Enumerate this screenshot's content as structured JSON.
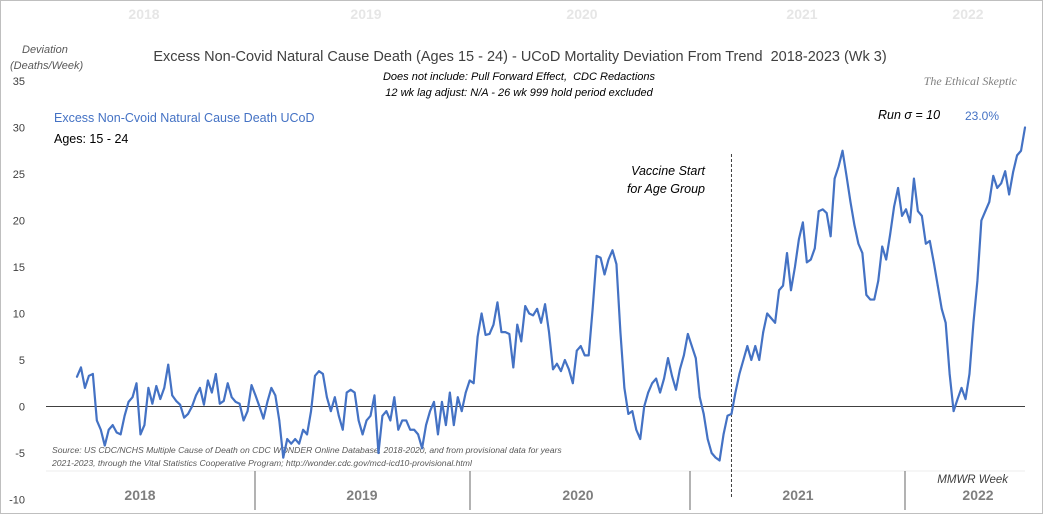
{
  "chart_data": {
    "type": "line",
    "title": "Excess Non-Covid Natural Cause Death (Ages 15 - 24) - UCoD Mortality Deviation From Trend  2018-2023 (Wk 3)",
    "subtitle_lines": [
      "Does not include: Pull Forward Effect,  CDC Redactions",
      "12 wk lag adjust: N/A - 26 wk 999 hold period excluded"
    ],
    "ylabel_lines": [
      "Deviation",
      "(Deaths/Week)"
    ],
    "xlabel": "MMWR Week",
    "ylim": [
      -10,
      35
    ],
    "yticks": [
      35,
      30,
      25,
      20,
      15,
      10,
      5,
      0,
      -5,
      -10
    ],
    "year_labels": [
      "2018",
      "2019",
      "2020",
      "2021",
      "2022"
    ],
    "series": [
      {
        "name": "Excess Non-Cvoid Natural Cause Death UCoD",
        "color": "#4472c4",
        "values": [
          3.2,
          4.2,
          2.0,
          3.3,
          3.5,
          -1.5,
          -2.5,
          -4.2,
          -2.5,
          -2.0,
          -2.8,
          -3.0,
          -1.0,
          0.5,
          1.0,
          2.5,
          -3.0,
          -2.0,
          2.0,
          0.3,
          2.2,
          0.8,
          2.0,
          4.5,
          1.2,
          0.6,
          0.2,
          -1.2,
          -0.8,
          0.0,
          1.2,
          2.0,
          0.2,
          2.8,
          1.5,
          3.5,
          0.3,
          0.6,
          2.5,
          1.0,
          0.5,
          0.3,
          -1.5,
          -0.5,
          2.3,
          1.2,
          0.0,
          -1.3,
          0.5,
          2.0,
          1.2,
          -1.5,
          -5.5,
          -3.5,
          -4.0,
          -3.5,
          -4.0,
          -2.5,
          -3.0,
          -0.5,
          3.3,
          3.8,
          3.5,
          1.0,
          -0.5,
          1.0,
          -1.0,
          -2.5,
          1.5,
          1.8,
          1.5,
          -1.5,
          -3.0,
          -1.5,
          -1.0,
          1.2,
          -5.0,
          -1.0,
          -0.5,
          -1.5,
          1.0,
          -2.5,
          -1.5,
          -1.5,
          -2.5,
          -2.5,
          -3.0,
          -4.5,
          -2.0,
          -0.5,
          0.5,
          -3.0,
          0.5,
          -2.0,
          1.5,
          -2.0,
          1.0,
          -0.5,
          1.5,
          2.8,
          2.5,
          7.5,
          10.0,
          7.7,
          7.8,
          8.8,
          11.2,
          8.0,
          8.0,
          7.8,
          4.2,
          8.8,
          7.0,
          10.8,
          10.0,
          9.8,
          10.5,
          9.0,
          11.0,
          8.0,
          4.0,
          4.6,
          3.8,
          5.0,
          4.0,
          2.5,
          6.0,
          6.5,
          5.5,
          5.5,
          10.5,
          16.2,
          16.0,
          14.2,
          15.8,
          16.8,
          15.3,
          8.0,
          2.0,
          -0.8,
          -0.5,
          -2.5,
          -3.5,
          0.0,
          1.5,
          2.5,
          3.0,
          1.5,
          3.0,
          5.2,
          3.3,
          1.8,
          4.0,
          5.5,
          7.8,
          6.5,
          5.2,
          1.0,
          -0.8,
          -3.5,
          -5.0,
          -5.5,
          -5.8,
          -3.0,
          -1.0,
          -0.8,
          1.5,
          3.5,
          5.0,
          6.5,
          5.0,
          6.5,
          5.0,
          8.0,
          10.0,
          9.5,
          9.0,
          12.5,
          13.0,
          16.5,
          12.5,
          15.0,
          18.0,
          19.8,
          15.5,
          15.8,
          17.0,
          21.0,
          21.2,
          20.8,
          18.3,
          24.5,
          25.8,
          27.5,
          24.8,
          22.0,
          19.5,
          17.5,
          16.5,
          12.0,
          11.5,
          11.5,
          13.5,
          17.2,
          15.8,
          18.5,
          21.5,
          23.5,
          20.5,
          21.2,
          19.8,
          24.5,
          21.0,
          20.5,
          17.5,
          17.8,
          15.5,
          13.0,
          10.5,
          9.0,
          3.5,
          -0.5,
          0.8,
          2.0,
          0.8,
          3.5,
          9.0,
          13.5,
          20.0,
          21.0,
          22.0,
          24.8,
          23.5,
          24.0,
          25.3,
          22.8,
          25.2,
          27.0,
          27.5,
          30.0
        ]
      }
    ],
    "legend_series_label": "Excess Non-Cvoid Natural Cause Death UCoD",
    "legend_age_label": "Ages: 15 - 24",
    "vaccine_week_index": 165,
    "vaccine_label_lines": [
      "Vaccine Start",
      "for Age Group"
    ],
    "run_sigma_label": "Run σ = 10",
    "percent_label": "23.0%",
    "watermark": "The Ethical Skeptic",
    "source_lines": [
      "Source: US CDC/NCHS Multiple Cause of Death on CDC WONDER Online Database, 2018-2020, and from provisional data for years",
      "2021-2023, through the Vital Statistics Cooperative Program; http://wonder.cdc.gov/mcd-icd10-provisional.html"
    ],
    "grid": false,
    "colors": {
      "line": "#4472c4",
      "text": "#404040",
      "year_label": "#7f7f7f",
      "faint_year_label": "#e6e6e6",
      "zero_line": "#000000",
      "border": "#bfbfbf"
    }
  }
}
